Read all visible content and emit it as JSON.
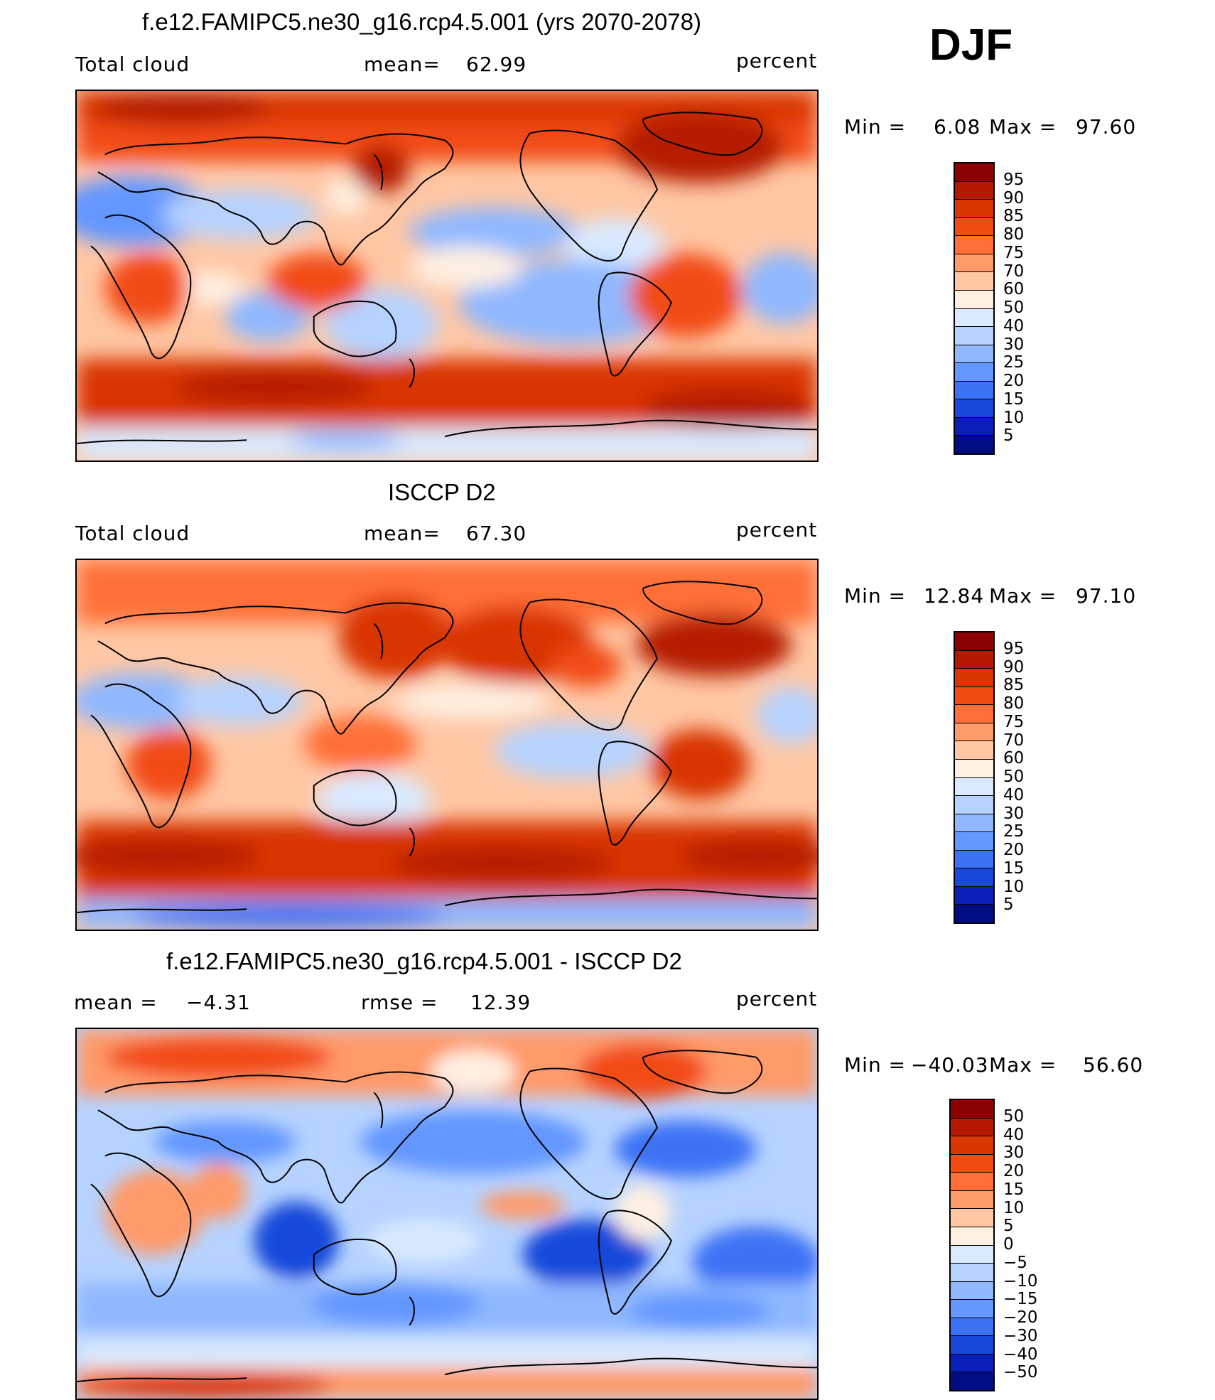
{
  "season": "DJF",
  "panels": [
    {
      "title": "f.e12.FAMIPC5.ne30_g16.rcp4.5.001 (yrs 2070-2078)",
      "left_label": "Total cloud",
      "stat_label": "mean=",
      "stat_value": "62.99",
      "extra_label": "",
      "extra_value": "",
      "units": "percent",
      "min_label": "Min  =",
      "min_value": "6.08",
      "max_label": "Max  =",
      "max_value": "97.60",
      "levels": [
        "95",
        "90",
        "85",
        "80",
        "75",
        "70",
        "60",
        "50",
        "40",
        "30",
        "25",
        "20",
        "15",
        "10",
        "5"
      ],
      "colors": [
        "#8b0000",
        "#b51a00",
        "#d93600",
        "#f24c12",
        "#ff6f37",
        "#ff9a69",
        "#ffc7a4",
        "#fff0e2",
        "#d9eaff",
        "#b6d3ff",
        "#8fb8ff",
        "#6497ff",
        "#3c72f5",
        "#1748da",
        "#0a1fb8",
        "#000c82"
      ],
      "map_caption": "Total cloud map"
    },
    {
      "title": "ISCCP D2",
      "left_label": "Total cloud",
      "stat_label": "mean=",
      "stat_value": "67.30",
      "extra_label": "",
      "extra_value": "",
      "units": "percent",
      "min_label": "Min  =",
      "min_value": "12.84",
      "max_label": "Max  =",
      "max_value": "97.10",
      "levels": [
        "95",
        "90",
        "85",
        "80",
        "75",
        "70",
        "60",
        "50",
        "40",
        "30",
        "25",
        "20",
        "15",
        "10",
        "5"
      ],
      "colors": [
        "#8b0000",
        "#b51a00",
        "#d93600",
        "#f24c12",
        "#ff6f37",
        "#ff9a69",
        "#ffc7a4",
        "#fff0e2",
        "#d9eaff",
        "#b6d3ff",
        "#8fb8ff",
        "#6497ff",
        "#3c72f5",
        "#1748da",
        "#0a1fb8",
        "#000c82"
      ],
      "map_caption": "Total cloud map"
    },
    {
      "title": "f.e12.FAMIPC5.ne30_g16.rcp4.5.001 - ISCCP D2",
      "left_label": "mean  =",
      "stat_label": "",
      "stat_value": "−4.31",
      "extra_label": "rmse  =",
      "extra_value": "12.39",
      "units": "percent",
      "min_label": "Min  =",
      "min_value": "−40.03",
      "max_label": "Max  =",
      "max_value": "56.60",
      "levels": [
        "50",
        "40",
        "30",
        "20",
        "15",
        "10",
        "5",
        "0",
        "−5",
        "−10",
        "−15",
        "−20",
        "−30",
        "−40",
        "−50"
      ],
      "colors": [
        "#8b0000",
        "#b51a00",
        "#d93600",
        "#f24c12",
        "#ff6f37",
        "#ff9a69",
        "#ffc7a4",
        "#fff0e2",
        "#d9eaff",
        "#b6d3ff",
        "#8fb8ff",
        "#6497ff",
        "#3c72f5",
        "#1748da",
        "#0a1fb8",
        "#000c82"
      ],
      "map_caption": "Difference map"
    }
  ]
}
